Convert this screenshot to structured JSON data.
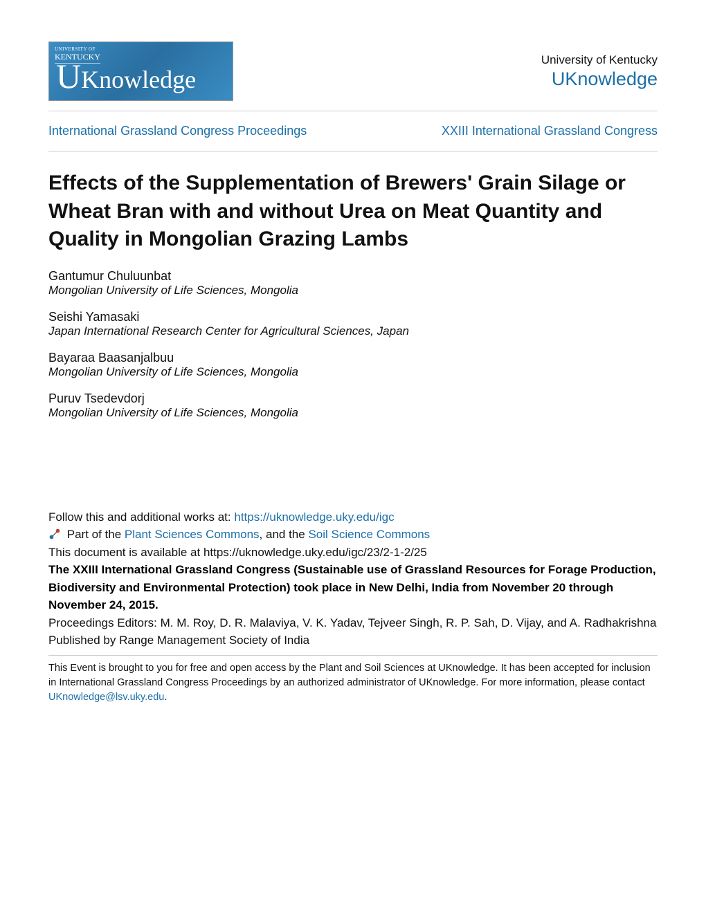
{
  "colors": {
    "link": "#1b6fa8",
    "text": "#111111",
    "logo_bg_from": "#3a8dc4",
    "logo_bg_to": "#2a6fa0",
    "rule": "#cccccc",
    "background": "#ffffff"
  },
  "typography": {
    "title_fontsize": 30,
    "body_fontsize": 17,
    "nav_fontsize": 18,
    "repo_fontsize": 27,
    "footer_fontsize": 14.5
  },
  "header": {
    "logo_small_line1": "UNIVERSITY OF",
    "logo_small_line2": "KENTUCKY",
    "logo_main_big": "U",
    "logo_main_rest": "Knowledge",
    "university": "University of Kentucky",
    "repository": "UKnowledge"
  },
  "nav": {
    "left": "International Grassland Congress Proceedings",
    "right": "XXIII International Grassland Congress"
  },
  "title": "Effects of the Supplementation of Brewers' Grain Silage or Wheat Bran with and without Urea on Meat Quantity and Quality in Mongolian Grazing Lambs",
  "authors": [
    {
      "name": "Gantumur Chuluunbat",
      "affiliation": "Mongolian University of Life Sciences, Mongolia"
    },
    {
      "name": "Seishi Yamasaki",
      "affiliation": "Japan International Research Center for Agricultural Sciences, Japan"
    },
    {
      "name": "Bayaraa Baasanjalbuu",
      "affiliation": "Mongolian University of Life Sciences, Mongolia"
    },
    {
      "name": "Puruv Tsedevdorj",
      "affiliation": "Mongolian University of Life Sciences, Mongolia"
    }
  ],
  "meta": {
    "follow_text": "Follow this and additional works at: ",
    "follow_url": "https://uknowledge.uky.edu/igc",
    "part_of_prefix": "Part of the ",
    "commons_1": "Plant Sciences Commons",
    "commons_sep": ", and the ",
    "commons_2": "Soil Science Commons",
    "avail_text": "This document is available at https://uknowledge.uky.edu/igc/23/2-1-2/25",
    "congress_bold": "The XXIII International Grassland Congress (Sustainable use of Grassland Resources for Forage Production, Biodiversity and Environmental Protection) took place in New Delhi, India from November 20 through November 24, 2015.",
    "editors": "Proceedings Editors: M. M. Roy, D. R. Malaviya, V. K. Yadav, Tejveer Singh, R. P. Sah, D. Vijay, and A. Radhakrishna",
    "publisher": "Published by Range Management Society of India"
  },
  "footer": {
    "text_before": "This Event is brought to you for free and open access by the Plant and Soil Sciences at UKnowledge. It has been accepted for inclusion in International Grassland Congress Proceedings by an authorized administrator of UKnowledge. For more information, please contact ",
    "contact": "UKnowledge@lsv.uky.edu",
    "text_after": "."
  }
}
